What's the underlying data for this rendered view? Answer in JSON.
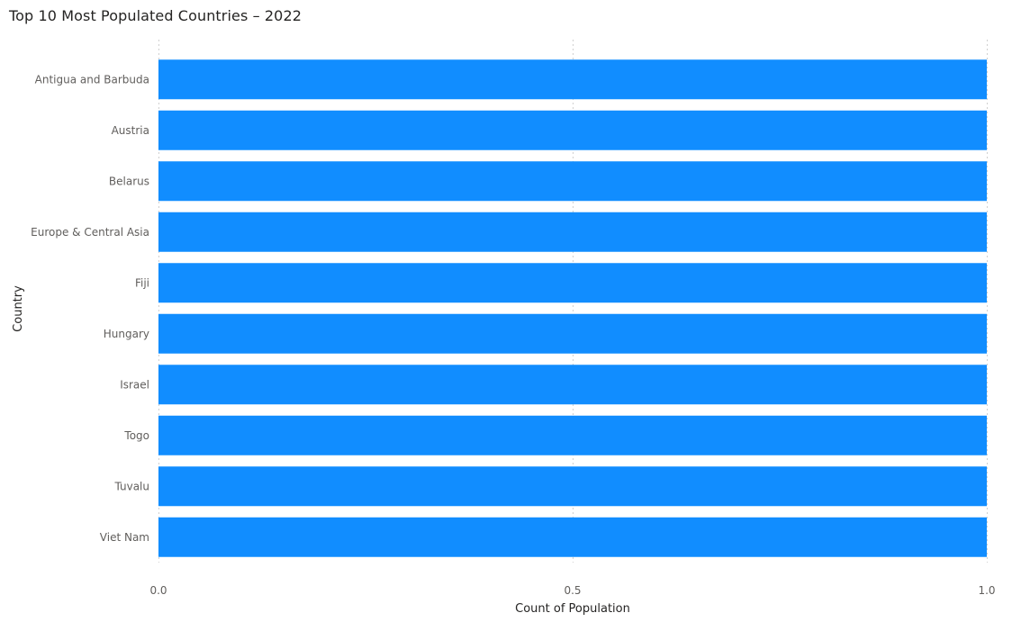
{
  "chart_data": {
    "type": "bar",
    "orientation": "horizontal",
    "title": "Top 10 Most Populated Countries – 2022",
    "xlabel": "Count of Population",
    "ylabel": "Country",
    "categories": [
      "Antigua and Barbuda",
      "Austria",
      "Belarus",
      "Europe & Central Asia",
      "Fiji",
      "Hungary",
      "Israel",
      "Togo",
      "Tuvalu",
      "Viet Nam"
    ],
    "values": [
      1,
      1,
      1,
      1,
      1,
      1,
      1,
      1,
      1,
      1
    ],
    "xlim": [
      0,
      1
    ],
    "xticks": [
      0,
      0.5,
      1
    ],
    "xtick_labels": [
      "0.0",
      "0.5",
      "1.0"
    ],
    "grid": "vertical dashed",
    "bar_color": "#118DFF"
  }
}
